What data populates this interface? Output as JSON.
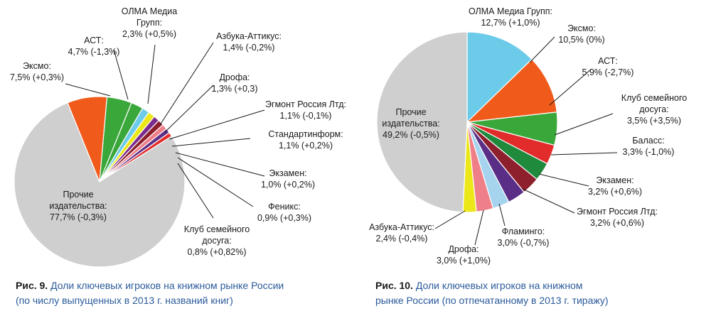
{
  "colors": {
    "other": "#cfcfcf",
    "orange": "#f05a1a",
    "green": "#3aa73a",
    "lightblue": "#6ccbe8",
    "yellow": "#ece718",
    "purple": "#7b2b8e",
    "darkred": "#8e1f2c",
    "pink": "#ef7f88",
    "red": "#e22b2b",
    "darkgreen": "#1f8a3c",
    "skyblue": "#a6d4ee",
    "violet": "#5a2e86",
    "blue": "#2a5a9a"
  },
  "chart_data": [
    {
      "type": "pie",
      "title": "",
      "slices": [
        {
          "label_lines": [
            "ОЛМА Медиа",
            "Групп:",
            "2,3% (+0,5%)"
          ],
          "value": 2.3,
          "color": "#3aa73a"
        },
        {
          "label_lines": [
            "Азбука-Аттикус:",
            "1,4% (-0,2%)"
          ],
          "value": 1.4,
          "color": "#6ccbe8"
        },
        {
          "label_lines": [
            "Дрофа:",
            "1,3% (+0,3)"
          ],
          "value": 1.3,
          "color": "#ece718"
        },
        {
          "label_lines": [
            "Эгмонт Россия Лтд:",
            "1,1% (-0,1%)"
          ],
          "value": 1.1,
          "color": "#7b2b8e"
        },
        {
          "label_lines": [
            "Стандартинформ:",
            "1,1% (+0,2%)"
          ],
          "value": 1.1,
          "color": "#8e1f2c"
        },
        {
          "label_lines": [
            "Экзамен:",
            "1,0% (+0,2%)"
          ],
          "value": 1.0,
          "color": "#ef7f88"
        },
        {
          "label_lines": [
            "Феникс:",
            "0,9% (+0,3%)"
          ],
          "value": 0.9,
          "color": "#5a2e86"
        },
        {
          "label_lines": [
            "Клуб семейного",
            "досуга:",
            "0,8% (+0,82%)"
          ],
          "value": 0.8,
          "color": "#e22b2b"
        },
        {
          "label_lines": [
            "Прочие",
            "издательства:",
            "77,7% (-0,3%)"
          ],
          "value": 77.7,
          "color": "#cfcfcf"
        },
        {
          "label_lines": [
            "Эксмо:",
            "7,5% (+0,3%)"
          ],
          "value": 7.5,
          "color": "#f05a1a"
        },
        {
          "label_lines": [
            "АСТ:",
            "4,7% (-1,3%)"
          ],
          "value": 4.7,
          "color": "#3aa73a"
        }
      ],
      "caption": {
        "prefix": "Рис. 9.",
        "line1": "Доли ключевых игроков на книжном рынке России",
        "line2": "(по числу выпущенных в 2013 г. названий книг)"
      }
    },
    {
      "type": "pie",
      "title": "",
      "slices": [
        {
          "label_lines": [
            "ОЛМА Медиа Групп:",
            "12,7% (+1,0%)"
          ],
          "value": 12.7,
          "color": "#6ccbe8"
        },
        {
          "label_lines": [
            "Эксмо:",
            "10,5% (0%)"
          ],
          "value": 10.5,
          "color": "#f05a1a"
        },
        {
          "label_lines": [
            "АСТ:",
            "5,9% (-2,7%)"
          ],
          "value": 5.9,
          "color": "#3aa73a"
        },
        {
          "label_lines": [
            "Клуб семейного",
            "досуга:",
            "3,5% (+3,5%)"
          ],
          "value": 3.5,
          "color": "#e22b2b"
        },
        {
          "label_lines": [
            "Баласс:",
            "3,3% (-1,0%)"
          ],
          "value": 3.3,
          "color": "#1f8a3c"
        },
        {
          "label_lines": [
            "Экзамен:",
            "3,2% (+0,6%)"
          ],
          "value": 3.2,
          "color": "#8e1f2c"
        },
        {
          "label_lines": [
            "Эгмонт Россия Лтд:",
            "3,2% (+0,6%)"
          ],
          "value": 3.2,
          "color": "#5a2e86"
        },
        {
          "label_lines": [
            "Фламинго:",
            "3,0% (-0,7%)"
          ],
          "value": 3.0,
          "color": "#a6d4ee"
        },
        {
          "label_lines": [
            "Дрофа:",
            "3,0% (+1,0%)"
          ],
          "value": 3.0,
          "color": "#ef7f88"
        },
        {
          "label_lines": [
            "Азбука-Аттикус:",
            "2,4% (-0,4%)"
          ],
          "value": 2.4,
          "color": "#ece718"
        },
        {
          "label_lines": [
            "Прочие",
            "издательства:",
            "49,2% (-0,5%)"
          ],
          "value": 49.2,
          "color": "#cfcfcf"
        }
      ],
      "caption": {
        "prefix": "Рис. 10.",
        "line1": "Доли ключевых игроков на книжном",
        "line2": "рынке России (по отпечатанному в 2013 г. тиражу)"
      }
    }
  ]
}
